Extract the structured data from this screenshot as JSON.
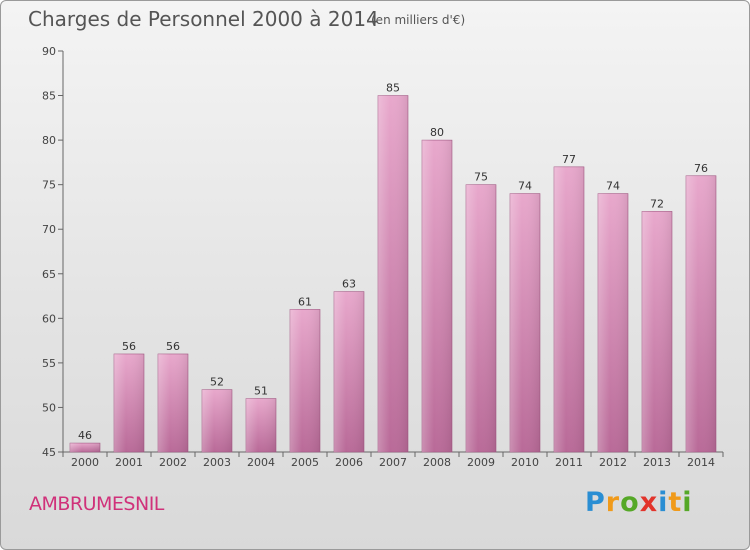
{
  "title": "Charges de Personnel 2000 à 2014",
  "unit_note": "(en milliers d'€)",
  "commune": "AMBRUMESNIL",
  "logo": {
    "p": "P",
    "r": "r",
    "o": "o",
    "x": "x",
    "i1": "i",
    "t": "t",
    "i2": "i"
  },
  "colors": {
    "bar": "#d97fb0",
    "bar_light": "#eab3d3",
    "commune": "#d0317a"
  },
  "chart_data": {
    "type": "bar",
    "categories": [
      "2000",
      "2001",
      "2002",
      "2003",
      "2004",
      "2005",
      "2006",
      "2007",
      "2008",
      "2009",
      "2010",
      "2011",
      "2012",
      "2013",
      "2014"
    ],
    "values": [
      46,
      56,
      56,
      52,
      51,
      61,
      63,
      85,
      80,
      75,
      74,
      77,
      74,
      72,
      76
    ],
    "ylim": [
      45,
      90
    ],
    "yticks": [
      45,
      50,
      55,
      60,
      65,
      70,
      75,
      80,
      85,
      90
    ],
    "grid": false,
    "data_labels": true
  }
}
